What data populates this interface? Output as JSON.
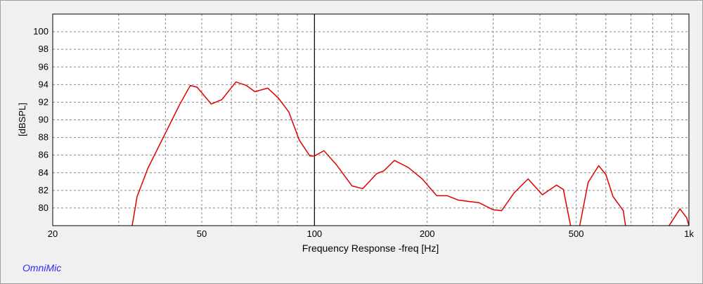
{
  "chart_data": {
    "type": "line",
    "brand": "OmniMic",
    "y_label": "[dBSPL]",
    "x_label": "Frequency Response -freq [Hz]",
    "log_x": true,
    "grid": true,
    "cursor_x": 100,
    "xlim": [
      20,
      1000
    ],
    "ylim": [
      78,
      102
    ],
    "xticks": [
      20,
      50,
      100,
      200,
      500,
      {
        "value": 1000,
        "label": "1k"
      }
    ],
    "xminor": [
      30,
      40,
      60,
      70,
      80,
      90,
      300,
      400,
      600,
      700,
      800,
      900
    ],
    "yticks": [
      80,
      82,
      84,
      86,
      88,
      90,
      92,
      94,
      96,
      98,
      100
    ],
    "x": [
      32.6,
      33.6,
      35.9,
      40,
      43.6,
      46.6,
      48.6,
      53,
      56.6,
      61.7,
      65.8,
      69.3,
      75,
      80,
      85.4,
      91.1,
      97.2,
      100,
      106,
      114.5,
      126,
      134.6,
      146.6,
      153,
      163.5,
      178,
      194,
      212,
      226,
      242,
      275,
      300,
      316,
      341,
      372,
      406,
      443,
      462,
      483,
      497,
      511,
      538,
      574,
      600,
      627,
      668,
      677,
      780,
      885,
      946,
      986,
      1000
    ],
    "series": [
      {
        "name": "freq",
        "color": "#e00000",
        "values": [
          78,
          81.3,
          84.5,
          88.5,
          91.7,
          93.9,
          93.7,
          91.8,
          92.3,
          94.3,
          93.9,
          93.2,
          93.6,
          92.5,
          90.9,
          87.7,
          85.9,
          85.9,
          86.5,
          84.9,
          82.5,
          82.2,
          83.9,
          84.2,
          85.4,
          84.6,
          83.3,
          81.4,
          81.4,
          80.9,
          80.6,
          79.8,
          79.7,
          81.7,
          83.3,
          81.5,
          82.6,
          82.1,
          78,
          null,
          78,
          82.9,
          84.8,
          83.8,
          81.3,
          79.7,
          78,
          null,
          78,
          79.9,
          78.9,
          78
        ]
      }
    ]
  }
}
